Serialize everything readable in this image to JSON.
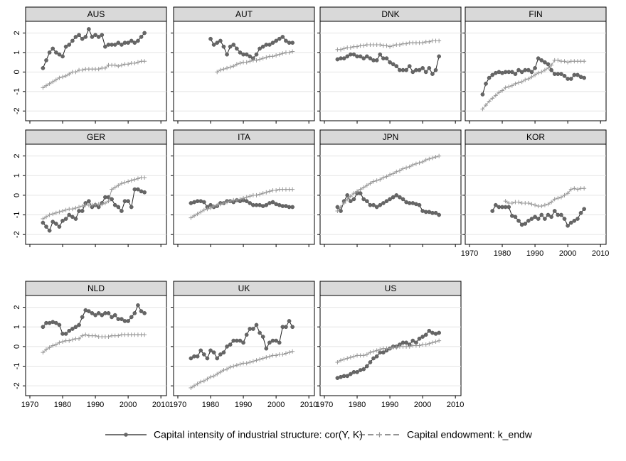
{
  "chart_data": {
    "type": "line",
    "legend": "bottom",
    "grid": true,
    "x": [
      1974,
      1975,
      1976,
      1977,
      1978,
      1979,
      1980,
      1981,
      1982,
      1983,
      1984,
      1985,
      1986,
      1987,
      1988,
      1989,
      1990,
      1991,
      1992,
      1993,
      1994,
      1995,
      1996,
      1997,
      1998,
      1999,
      2000,
      2001,
      2002,
      2003,
      2004,
      2005
    ],
    "xlim": [
      1968.7,
      2011.7
    ],
    "ylim": [
      -2.5,
      2.6
    ],
    "xticks": [
      1970,
      1980,
      1990,
      2000,
      2010
    ],
    "yticks": [
      -2,
      -1,
      0,
      1,
      2
    ],
    "series": [
      {
        "name": "Capital intensity of industrial structure: cor(Y, K)",
        "color": "#555555",
        "marker": "circle",
        "dash": false
      },
      {
        "name": "Capital endowment: k_endw",
        "color": "#999999",
        "marker": "plus",
        "dash": true
      }
    ],
    "panels": [
      {
        "title": "AUS",
        "values": [
          [
            0.2,
            0.6,
            1.0,
            1.2,
            1.0,
            0.9,
            0.8,
            1.3,
            1.4,
            1.6,
            1.8,
            1.9,
            1.7,
            1.8,
            2.2,
            1.8,
            1.9,
            1.8,
            1.9,
            1.3,
            1.4,
            1.4,
            1.4,
            1.5,
            1.4,
            1.5,
            1.5,
            1.6,
            1.5,
            1.6,
            1.8,
            2.0
          ],
          [
            -0.8,
            -0.7,
            -0.6,
            -0.5,
            -0.4,
            -0.3,
            -0.25,
            -0.2,
            -0.1,
            0.0,
            0.0,
            0.1,
            0.1,
            0.15,
            0.15,
            0.15,
            0.15,
            0.15,
            0.2,
            0.2,
            0.35,
            0.35,
            0.35,
            0.3,
            0.35,
            0.4,
            0.4,
            0.45,
            0.45,
            0.5,
            0.55,
            0.55
          ]
        ]
      },
      {
        "title": "AUT",
        "values": [
          [
            null,
            null,
            null,
            null,
            null,
            null,
            1.7,
            1.4,
            1.5,
            1.6,
            1.3,
            0.9,
            1.3,
            1.4,
            1.2,
            1.0,
            0.9,
            0.9,
            0.8,
            0.7,
            0.9,
            1.2,
            1.3,
            1.4,
            1.4,
            1.5,
            1.6,
            1.7,
            1.8,
            1.6,
            1.5,
            1.5
          ],
          [
            null,
            null,
            null,
            null,
            null,
            null,
            null,
            null,
            0.0,
            0.1,
            0.15,
            0.2,
            0.25,
            0.3,
            0.4,
            0.45,
            0.5,
            0.5,
            0.55,
            0.6,
            0.6,
            0.65,
            0.7,
            0.75,
            0.8,
            0.8,
            0.85,
            0.9,
            0.95,
            1.0,
            1.0,
            1.05
          ]
        ]
      },
      {
        "title": "DNK",
        "values": [
          [
            0.65,
            0.7,
            0.7,
            0.8,
            0.9,
            0.9,
            0.8,
            0.8,
            0.7,
            0.8,
            0.7,
            0.6,
            0.6,
            0.9,
            0.7,
            0.7,
            0.5,
            0.4,
            0.3,
            0.1,
            0.1,
            0.1,
            0.3,
            0.0,
            0.1,
            0.1,
            0.2,
            0.0,
            0.2,
            -0.1,
            0.1,
            0.8
          ],
          [
            1.15,
            1.15,
            1.2,
            1.25,
            1.25,
            1.3,
            1.3,
            1.35,
            1.35,
            1.4,
            1.4,
            1.4,
            1.4,
            1.4,
            1.35,
            1.35,
            1.3,
            1.35,
            1.4,
            1.4,
            1.45,
            1.45,
            1.5,
            1.5,
            1.5,
            1.5,
            1.5,
            1.55,
            1.55,
            1.6,
            1.6,
            1.6
          ]
        ]
      },
      {
        "title": "FIN",
        "values": [
          [
            -1.15,
            -0.6,
            -0.3,
            -0.15,
            -0.05,
            0.0,
            -0.05,
            0.0,
            0.0,
            0.0,
            -0.1,
            0.1,
            0.0,
            0.1,
            0.1,
            0.0,
            0.2,
            0.7,
            0.6,
            0.5,
            0.4,
            0.1,
            -0.1,
            -0.1,
            -0.1,
            -0.2,
            -0.35,
            -0.35,
            -0.15,
            -0.15,
            -0.25,
            -0.3
          ],
          [
            -1.9,
            -1.7,
            -1.5,
            -1.35,
            -1.2,
            -1.05,
            -0.95,
            -0.8,
            -0.75,
            -0.7,
            -0.6,
            -0.55,
            -0.5,
            -0.4,
            -0.35,
            -0.25,
            -0.15,
            -0.05,
            0.0,
            0.1,
            0.2,
            0.35,
            0.6,
            0.6,
            0.55,
            0.55,
            0.5,
            0.55,
            0.55,
            0.55,
            0.55,
            0.55
          ]
        ]
      },
      {
        "title": "GER",
        "values": [
          [
            -1.4,
            -1.6,
            -1.8,
            -1.35,
            -1.45,
            -1.6,
            -1.3,
            -1.2,
            -1.0,
            -1.1,
            -1.2,
            -0.8,
            -0.8,
            -0.4,
            -0.3,
            -0.6,
            -0.5,
            -0.6,
            -0.4,
            -0.1,
            -0.1,
            -0.2,
            -0.5,
            -0.6,
            -0.8,
            -0.3,
            -0.3,
            -0.6,
            0.3,
            0.3,
            0.2,
            0.15
          ],
          [
            -1.2,
            -1.1,
            -1.0,
            -0.95,
            -0.9,
            -0.85,
            -0.8,
            -0.75,
            -0.7,
            -0.7,
            -0.65,
            -0.6,
            -0.55,
            -0.5,
            -0.5,
            -0.5,
            -0.45,
            -0.45,
            -0.45,
            -0.4,
            -0.3,
            0.3,
            0.4,
            0.5,
            0.6,
            0.65,
            0.7,
            0.75,
            0.8,
            0.85,
            0.9,
            0.9
          ]
        ]
      },
      {
        "title": "ITA",
        "values": [
          [
            -0.4,
            -0.35,
            -0.3,
            -0.3,
            -0.35,
            -0.6,
            -0.5,
            -0.6,
            -0.55,
            -0.4,
            -0.4,
            -0.3,
            -0.3,
            -0.35,
            -0.25,
            -0.3,
            -0.25,
            -0.3,
            -0.4,
            -0.5,
            -0.5,
            -0.5,
            -0.55,
            -0.5,
            -0.4,
            -0.35,
            -0.45,
            -0.5,
            -0.55,
            -0.55,
            -0.6,
            -0.6
          ],
          [
            -1.15,
            -1.05,
            -0.95,
            -0.85,
            -0.75,
            -0.7,
            -0.65,
            -0.55,
            -0.5,
            -0.45,
            -0.4,
            -0.35,
            -0.3,
            -0.25,
            -0.25,
            -0.2,
            -0.15,
            -0.1,
            -0.05,
            0.0,
            0.0,
            0.05,
            0.1,
            0.15,
            0.2,
            0.25,
            0.25,
            0.3,
            0.3,
            0.3,
            0.3,
            0.3
          ]
        ]
      },
      {
        "title": "JPN",
        "values": [
          [
            -0.6,
            -0.8,
            -0.3,
            0.0,
            -0.3,
            -0.2,
            0.1,
            0.1,
            -0.2,
            -0.3,
            -0.5,
            -0.5,
            -0.6,
            -0.5,
            -0.4,
            -0.3,
            -0.2,
            -0.1,
            0.0,
            -0.1,
            -0.2,
            -0.35,
            -0.4,
            -0.4,
            -0.45,
            -0.5,
            -0.8,
            -0.85,
            -0.85,
            -0.9,
            -0.9,
            -1.0
          ],
          [
            -0.8,
            -0.6,
            -0.4,
            -0.2,
            -0.05,
            0.1,
            0.2,
            0.3,
            0.4,
            0.5,
            0.6,
            0.7,
            0.75,
            0.8,
            0.9,
            0.95,
            1.05,
            1.1,
            1.2,
            1.25,
            1.35,
            1.4,
            1.45,
            1.55,
            1.6,
            1.65,
            1.7,
            1.8,
            1.85,
            1.9,
            1.95,
            2.0
          ]
        ]
      },
      {
        "title": "KOR",
        "values": [
          [
            null,
            null,
            null,
            -0.8,
            -0.5,
            -0.6,
            -0.6,
            -0.6,
            -0.6,
            -1.05,
            -1.1,
            -1.3,
            -1.5,
            -1.45,
            -1.3,
            -1.2,
            -1.1,
            -1.2,
            -1.0,
            -1.2,
            -1.0,
            -1.1,
            -0.8,
            -1.0,
            -1.0,
            -1.2,
            -1.55,
            -1.4,
            -1.3,
            -1.2,
            -0.9,
            -0.7
          ],
          [
            null,
            null,
            null,
            null,
            null,
            null,
            null,
            -0.3,
            -0.4,
            -0.4,
            -0.35,
            -0.35,
            -0.4,
            -0.4,
            -0.4,
            -0.45,
            -0.5,
            -0.55,
            -0.55,
            -0.5,
            -0.45,
            -0.35,
            -0.2,
            -0.15,
            -0.1,
            0.0,
            0.1,
            0.3,
            0.35,
            0.3,
            0.35,
            0.35
          ]
        ]
      },
      {
        "title": "NLD",
        "values": [
          [
            1.0,
            1.2,
            1.2,
            1.25,
            1.2,
            1.1,
            0.65,
            0.65,
            0.8,
            0.9,
            1.0,
            1.1,
            1.5,
            1.85,
            1.8,
            1.7,
            1.6,
            1.7,
            1.6,
            1.7,
            1.7,
            1.5,
            1.6,
            1.4,
            1.4,
            1.3,
            1.3,
            1.5,
            1.7,
            2.1,
            1.8,
            1.7
          ],
          [
            -0.3,
            -0.15,
            -0.05,
            0.05,
            0.1,
            0.2,
            0.25,
            0.3,
            0.3,
            0.35,
            0.4,
            0.4,
            0.55,
            0.6,
            0.55,
            0.55,
            0.55,
            0.5,
            0.5,
            0.5,
            0.5,
            0.55,
            0.55,
            0.55,
            0.6,
            0.6,
            0.6,
            0.6,
            0.6,
            0.6,
            0.6,
            0.6
          ]
        ]
      },
      {
        "title": "UK",
        "values": [
          [
            -0.6,
            -0.5,
            -0.5,
            -0.2,
            -0.4,
            -0.6,
            -0.2,
            -0.3,
            -0.6,
            -0.4,
            -0.3,
            0.0,
            0.1,
            0.3,
            0.3,
            0.3,
            0.2,
            0.6,
            0.9,
            0.9,
            1.1,
            0.7,
            0.5,
            -0.1,
            0.2,
            0.3,
            0.3,
            0.2,
            1.0,
            1.0,
            1.3,
            1.0
          ],
          [
            -2.1,
            -2.0,
            -1.9,
            -1.8,
            -1.75,
            -1.65,
            -1.55,
            -1.5,
            -1.4,
            -1.3,
            -1.2,
            -1.15,
            -1.05,
            -1.0,
            -0.95,
            -0.9,
            -0.85,
            -0.85,
            -0.8,
            -0.75,
            -0.7,
            -0.65,
            -0.6,
            -0.55,
            -0.5,
            -0.45,
            -0.45,
            -0.4,
            -0.4,
            -0.35,
            -0.3,
            -0.25
          ]
        ]
      },
      {
        "title": "US",
        "values": [
          [
            -1.6,
            -1.55,
            -1.5,
            -1.5,
            -1.4,
            -1.3,
            -1.3,
            -1.2,
            -1.15,
            -1.0,
            -0.8,
            -0.6,
            -0.5,
            -0.3,
            -0.3,
            -0.2,
            -0.1,
            0.0,
            0.0,
            0.1,
            0.2,
            0.2,
            0.1,
            0.3,
            0.2,
            0.4,
            0.5,
            0.6,
            0.8,
            0.7,
            0.65,
            0.7
          ],
          [
            -0.8,
            -0.7,
            -0.65,
            -0.6,
            -0.55,
            -0.5,
            -0.45,
            -0.45,
            -0.45,
            -0.4,
            -0.3,
            -0.25,
            -0.2,
            -0.15,
            -0.1,
            -0.1,
            -0.1,
            -0.05,
            -0.05,
            0.0,
            0.0,
            0.0,
            0.0,
            0.05,
            0.05,
            0.05,
            0.1,
            0.1,
            0.15,
            0.2,
            0.25,
            0.3
          ]
        ]
      }
    ]
  }
}
